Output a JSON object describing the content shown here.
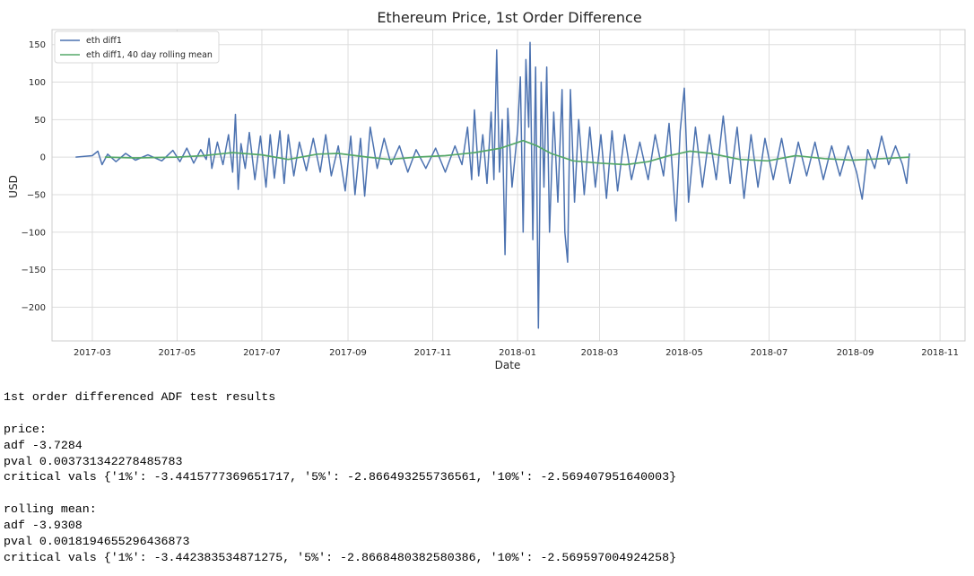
{
  "chart_data": {
    "type": "line",
    "title": "Ethereum Price, 1st Order Difference",
    "xlabel": "Date",
    "ylabel": "USD",
    "xlim": [
      "2017-01-31",
      "2018-11-19"
    ],
    "ylim": [
      -245,
      170
    ],
    "grid": true,
    "legend_position": "top-left",
    "x_ticks": [
      "2017-03",
      "2017-05",
      "2017-07",
      "2017-09",
      "2017-11",
      "2018-01",
      "2018-03",
      "2018-05",
      "2018-07",
      "2018-09",
      "2018-11"
    ],
    "y_ticks": [
      150,
      100,
      50,
      0,
      -50,
      -100,
      -150,
      -200
    ],
    "series": [
      {
        "name": "eth diff1",
        "color": "#4c72b0",
        "points": [
          [
            "2017-02-17",
            0
          ],
          [
            "2017-03-01",
            2
          ],
          [
            "2017-03-05",
            8
          ],
          [
            "2017-03-08",
            -10
          ],
          [
            "2017-03-12",
            4
          ],
          [
            "2017-03-18",
            -6
          ],
          [
            "2017-03-25",
            5
          ],
          [
            "2017-04-01",
            -4
          ],
          [
            "2017-04-10",
            3
          ],
          [
            "2017-04-20",
            -5
          ],
          [
            "2017-04-28",
            9
          ],
          [
            "2017-05-03",
            -6
          ],
          [
            "2017-05-08",
            12
          ],
          [
            "2017-05-13",
            -8
          ],
          [
            "2017-05-18",
            10
          ],
          [
            "2017-05-22",
            -3
          ],
          [
            "2017-05-24",
            25
          ],
          [
            "2017-05-26",
            -15
          ],
          [
            "2017-05-30",
            20
          ],
          [
            "2017-06-03",
            -10
          ],
          [
            "2017-06-07",
            30
          ],
          [
            "2017-06-10",
            -20
          ],
          [
            "2017-06-12",
            57
          ],
          [
            "2017-06-14",
            -43
          ],
          [
            "2017-06-16",
            18
          ],
          [
            "2017-06-19",
            -15
          ],
          [
            "2017-06-22",
            33
          ],
          [
            "2017-06-26",
            -30
          ],
          [
            "2017-06-30",
            28
          ],
          [
            "2017-07-04",
            -40
          ],
          [
            "2017-07-07",
            30
          ],
          [
            "2017-07-10",
            -28
          ],
          [
            "2017-07-14",
            35
          ],
          [
            "2017-07-17",
            -35
          ],
          [
            "2017-07-20",
            30
          ],
          [
            "2017-07-24",
            -25
          ],
          [
            "2017-07-28",
            20
          ],
          [
            "2017-08-02",
            -18
          ],
          [
            "2017-08-07",
            25
          ],
          [
            "2017-08-12",
            -20
          ],
          [
            "2017-08-16",
            30
          ],
          [
            "2017-08-20",
            -25
          ],
          [
            "2017-08-25",
            15
          ],
          [
            "2017-08-30",
            -45
          ],
          [
            "2017-09-03",
            28
          ],
          [
            "2017-09-06",
            -50
          ],
          [
            "2017-09-10",
            25
          ],
          [
            "2017-09-13",
            -52
          ],
          [
            "2017-09-17",
            40
          ],
          [
            "2017-09-22",
            -15
          ],
          [
            "2017-09-27",
            25
          ],
          [
            "2017-10-02",
            -10
          ],
          [
            "2017-10-08",
            15
          ],
          [
            "2017-10-14",
            -20
          ],
          [
            "2017-10-20",
            10
          ],
          [
            "2017-10-27",
            -15
          ],
          [
            "2017-11-03",
            12
          ],
          [
            "2017-11-10",
            -20
          ],
          [
            "2017-11-17",
            15
          ],
          [
            "2017-11-22",
            -10
          ],
          [
            "2017-11-26",
            40
          ],
          [
            "2017-11-29",
            -30
          ],
          [
            "2017-12-01",
            63
          ],
          [
            "2017-12-04",
            -25
          ],
          [
            "2017-12-07",
            30
          ],
          [
            "2017-12-10",
            -35
          ],
          [
            "2017-12-13",
            60
          ],
          [
            "2017-12-15",
            -30
          ],
          [
            "2017-12-17",
            143
          ],
          [
            "2017-12-19",
            -20
          ],
          [
            "2017-12-21",
            50
          ],
          [
            "2017-12-23",
            -130
          ],
          [
            "2017-12-25",
            65
          ],
          [
            "2017-12-28",
            -40
          ],
          [
            "2018-01-01",
            35
          ],
          [
            "2018-01-03",
            107
          ],
          [
            "2018-01-05",
            -100
          ],
          [
            "2018-01-07",
            130
          ],
          [
            "2018-01-09",
            40
          ],
          [
            "2018-01-10",
            153
          ],
          [
            "2018-01-12",
            -110
          ],
          [
            "2018-01-14",
            120
          ],
          [
            "2018-01-16",
            -228
          ],
          [
            "2018-01-18",
            100
          ],
          [
            "2018-01-20",
            -40
          ],
          [
            "2018-01-22",
            120
          ],
          [
            "2018-01-24",
            -100
          ],
          [
            "2018-01-27",
            60
          ],
          [
            "2018-01-30",
            -60
          ],
          [
            "2018-02-02",
            90
          ],
          [
            "2018-02-04",
            -100
          ],
          [
            "2018-02-06",
            -140
          ],
          [
            "2018-02-08",
            90
          ],
          [
            "2018-02-11",
            -60
          ],
          [
            "2018-02-14",
            50
          ],
          [
            "2018-02-18",
            -50
          ],
          [
            "2018-02-22",
            40
          ],
          [
            "2018-02-26",
            -40
          ],
          [
            "2018-03-02",
            30
          ],
          [
            "2018-03-06",
            -55
          ],
          [
            "2018-03-10",
            35
          ],
          [
            "2018-03-14",
            -45
          ],
          [
            "2018-03-19",
            30
          ],
          [
            "2018-03-24",
            -30
          ],
          [
            "2018-03-30",
            20
          ],
          [
            "2018-04-05",
            -30
          ],
          [
            "2018-04-10",
            30
          ],
          [
            "2018-04-16",
            -25
          ],
          [
            "2018-04-20",
            45
          ],
          [
            "2018-04-25",
            -85
          ],
          [
            "2018-04-28",
            35
          ],
          [
            "2018-05-01",
            92
          ],
          [
            "2018-05-04",
            -60
          ],
          [
            "2018-05-09",
            40
          ],
          [
            "2018-05-14",
            -40
          ],
          [
            "2018-05-19",
            30
          ],
          [
            "2018-05-24",
            -30
          ],
          [
            "2018-05-29",
            55
          ],
          [
            "2018-06-03",
            -35
          ],
          [
            "2018-06-08",
            40
          ],
          [
            "2018-06-13",
            -55
          ],
          [
            "2018-06-18",
            30
          ],
          [
            "2018-06-23",
            -40
          ],
          [
            "2018-06-28",
            25
          ],
          [
            "2018-07-04",
            -30
          ],
          [
            "2018-07-10",
            25
          ],
          [
            "2018-07-16",
            -35
          ],
          [
            "2018-07-22",
            20
          ],
          [
            "2018-07-28",
            -25
          ],
          [
            "2018-08-03",
            20
          ],
          [
            "2018-08-09",
            -30
          ],
          [
            "2018-08-15",
            15
          ],
          [
            "2018-08-21",
            -25
          ],
          [
            "2018-08-27",
            15
          ],
          [
            "2018-09-02",
            -20
          ],
          [
            "2018-09-06",
            -56
          ],
          [
            "2018-09-10",
            10
          ],
          [
            "2018-09-15",
            -15
          ],
          [
            "2018-09-20",
            28
          ],
          [
            "2018-09-25",
            -10
          ],
          [
            "2018-09-30",
            15
          ],
          [
            "2018-10-05",
            -10
          ],
          [
            "2018-10-08",
            -35
          ],
          [
            "2018-10-10",
            5
          ]
        ]
      },
      {
        "name": "eth diff1, 40 day rolling mean",
        "color": "#55a868",
        "points": [
          [
            "2017-03-10",
            0
          ],
          [
            "2017-04-01",
            -1
          ],
          [
            "2017-05-01",
            0
          ],
          [
            "2017-05-20",
            2
          ],
          [
            "2017-06-10",
            6
          ],
          [
            "2017-07-01",
            3
          ],
          [
            "2017-07-20",
            -3
          ],
          [
            "2017-08-10",
            4
          ],
          [
            "2017-08-25",
            5
          ],
          [
            "2017-09-15",
            0
          ],
          [
            "2017-10-01",
            -3
          ],
          [
            "2017-10-20",
            0
          ],
          [
            "2017-11-10",
            2
          ],
          [
            "2017-12-01",
            6
          ],
          [
            "2017-12-20",
            12
          ],
          [
            "2018-01-05",
            22
          ],
          [
            "2018-01-15",
            15
          ],
          [
            "2018-01-25",
            5
          ],
          [
            "2018-02-10",
            -5
          ],
          [
            "2018-03-01",
            -8
          ],
          [
            "2018-03-20",
            -10
          ],
          [
            "2018-04-05",
            -6
          ],
          [
            "2018-04-20",
            2
          ],
          [
            "2018-05-05",
            8
          ],
          [
            "2018-05-20",
            5
          ],
          [
            "2018-06-10",
            -3
          ],
          [
            "2018-06-30",
            -5
          ],
          [
            "2018-07-20",
            2
          ],
          [
            "2018-08-10",
            -2
          ],
          [
            "2018-08-30",
            -4
          ],
          [
            "2018-09-20",
            -2
          ],
          [
            "2018-10-10",
            0
          ]
        ]
      }
    ]
  },
  "results": {
    "lines": [
      "1st order differenced ADF test results",
      "",
      "price:",
      "adf -3.7284",
      "pval 0.003731342278485783",
      "critical vals {'1%': -3.4415777369651717, '5%': -2.866493255736561, '10%': -2.569407951640003}",
      "",
      "rolling mean:",
      "adf -3.9308",
      "pval 0.0018194655296436873",
      "critical vals {'1%': -3.442383534871275, '5%': -2.8668480382580386, '10%': -2.569597004924258}"
    ]
  }
}
